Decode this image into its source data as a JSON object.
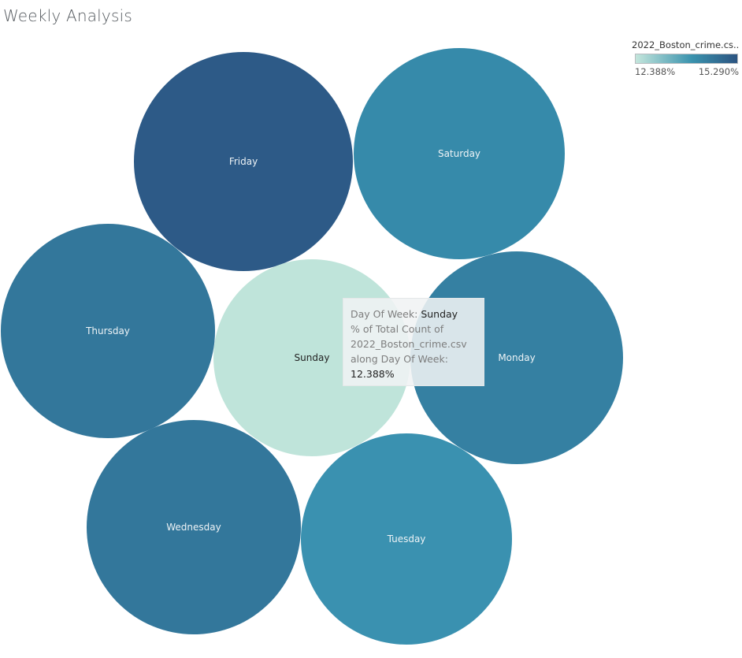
{
  "title": "Weekly Analysis",
  "legend": {
    "title": "2022_Boston_crime.cs..",
    "min_label": "12.388%",
    "max_label": "15.290%",
    "color_low": "#c4e6dc",
    "color_mid": "#3a93ae",
    "color_high": "#2c5481"
  },
  "tooltip": {
    "line1_label": "Day Of Week:",
    "line1_value": "Sunday",
    "line2": "% of Total Count of",
    "line3": "2022_Boston_crime.csv",
    "line4": "along Day Of Week:",
    "line5_value": "12.388%"
  },
  "chart_data": {
    "type": "bubble",
    "measure": "% of Total Count of 2022_Boston_crime.csv along Day Of Week",
    "items": [
      {
        "label": "Friday",
        "color": "#2d5a87"
      },
      {
        "label": "Saturday",
        "color": "#368aaa"
      },
      {
        "label": "Thursday",
        "color": "#33779b"
      },
      {
        "label": "Sunday",
        "value": 12.388,
        "color": "#bfe4da"
      },
      {
        "label": "Monday",
        "color": "#3580a2"
      },
      {
        "label": "Wednesday",
        "color": "#33779b"
      },
      {
        "label": "Tuesday",
        "color": "#3a91b0"
      }
    ]
  }
}
